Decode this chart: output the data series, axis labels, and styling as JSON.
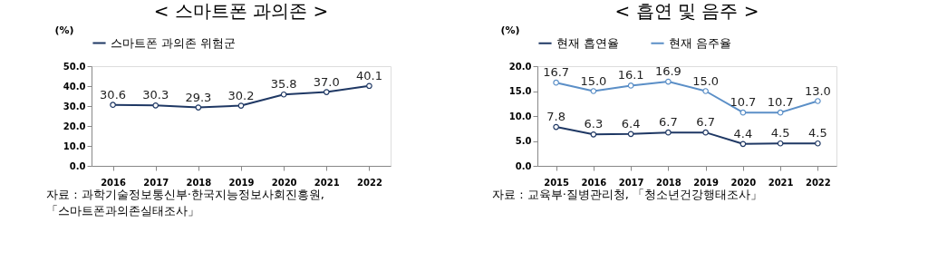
{
  "chart_data": [
    {
      "type": "line",
      "title": "< 스마트폰 과의존 >",
      "ylabel": "(%)",
      "categories": [
        "2016",
        "2017",
        "2018",
        "2019",
        "2020",
        "2021",
        "2022"
      ],
      "ylim": [
        0,
        50
      ],
      "yticks": [
        {
          "value": 0,
          "label": "0.0"
        },
        {
          "value": 10,
          "label": "10.0"
        },
        {
          "value": 20,
          "label": "20.0"
        },
        {
          "value": 30,
          "label": "30.0"
        },
        {
          "value": 40,
          "label": "40.0"
        },
        {
          "value": 50,
          "label": "50.0"
        }
      ],
      "grid": false,
      "legend": "top left",
      "marker": "circle",
      "line_style": "solid",
      "series": [
        {
          "name": "스마트폰 과의존 위험군",
          "color": "#1f3864",
          "values": [
            30.6,
            30.3,
            29.3,
            30.2,
            35.8,
            37.0,
            40.1
          ],
          "value_labels": [
            "30.6",
            "30.3",
            "29.3",
            "30.2",
            "35.8",
            "37.0",
            "40.1"
          ]
        }
      ],
      "annotations": [
        "자료 : 과학기술정보통신부·한국지능정보사회진흥원,",
        "「스마트폰과의존실태조사」"
      ]
    },
    {
      "type": "line",
      "title": "< 흡연 및 음주 >",
      "ylabel": "(%)",
      "categories": [
        "2015",
        "2016",
        "2017",
        "2018",
        "2019",
        "2020",
        "2021",
        "2022"
      ],
      "ylim": [
        0,
        20
      ],
      "yticks": [
        {
          "value": 0,
          "label": "0.0"
        },
        {
          "value": 5,
          "label": "5.0"
        },
        {
          "value": 10,
          "label": "10.0"
        },
        {
          "value": 15,
          "label": "15.0"
        },
        {
          "value": 20,
          "label": "20.0"
        }
      ],
      "grid": false,
      "legend": "top left",
      "marker": "circle",
      "line_style": "solid",
      "series": [
        {
          "name": "현재 흡연율",
          "color": "#1f3864",
          "values": [
            7.8,
            6.3,
            6.4,
            6.7,
            6.7,
            4.4,
            4.5,
            4.5
          ],
          "value_labels": [
            "7.8",
            "6.3",
            "6.4",
            "6.7",
            "6.7",
            "4.4",
            "4.5",
            "4.5"
          ]
        },
        {
          "name": "현재 음주율",
          "color": "#5b8fc7",
          "values": [
            16.7,
            15.0,
            16.1,
            16.9,
            15.0,
            10.7,
            10.7,
            13.0
          ],
          "value_labels": [
            "16.7",
            "15.0",
            "16.1",
            "16.9",
            "15.0",
            "10.7",
            "10.7",
            "13.0"
          ]
        }
      ],
      "annotations": [
        "자료 : 교육부·질병관리청, 「청소년건강행태조사」"
      ]
    }
  ]
}
